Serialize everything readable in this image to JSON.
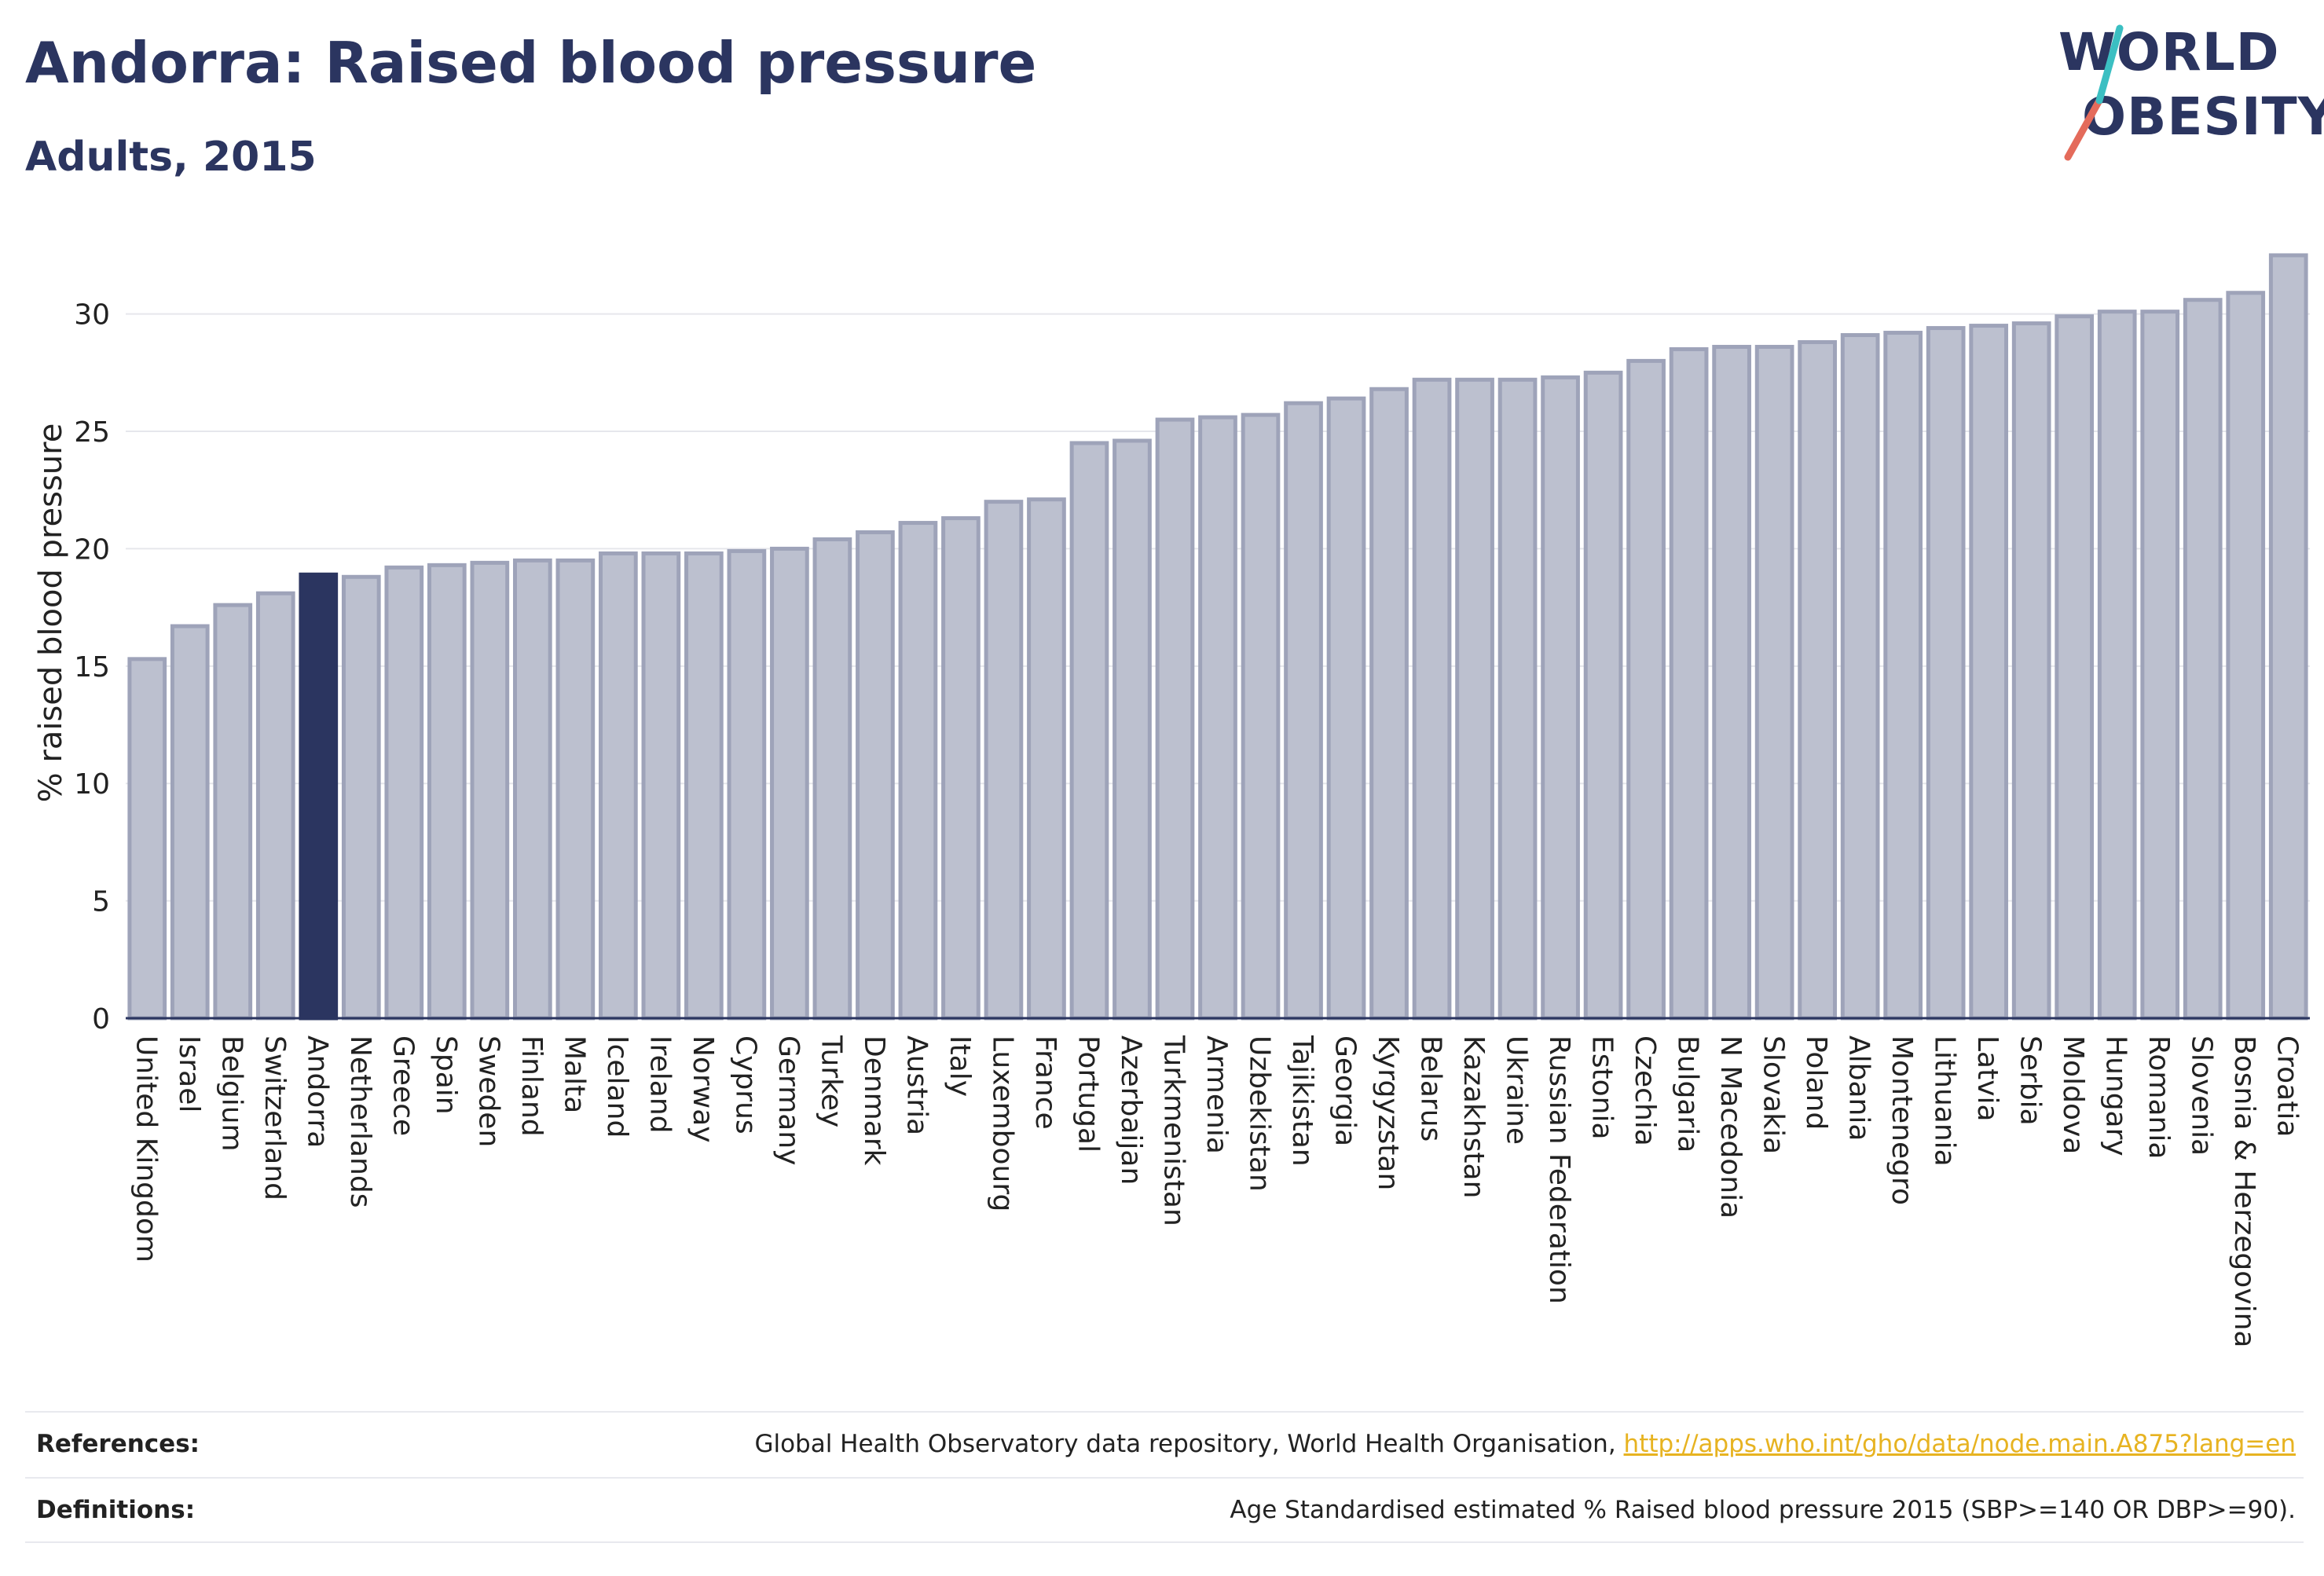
{
  "header": {
    "title": "Andorra: Raised blood pressure",
    "subtitle": "Adults, 2015"
  },
  "logo": {
    "line1": "WORLD",
    "line2": "OBESITY",
    "accent_colors": [
      "#e46b5b",
      "#3bbfc2"
    ]
  },
  "colors": {
    "highlight": "#2b3560",
    "bar_fill": "#bcc0cf",
    "bar_stroke": "#9ea3b9",
    "text": "#2b3560",
    "link": "#e7b321"
  },
  "chart_data": {
    "type": "bar",
    "title": "Andorra: Raised blood pressure",
    "subtitle": "Adults, 2015",
    "xlabel": "",
    "ylabel": "% raised blood pressure",
    "ylim": [
      0,
      33
    ],
    "yticks": [
      0,
      5,
      10,
      15,
      20,
      25,
      30
    ],
    "grid": true,
    "highlight": "Andorra",
    "categories": [
      "United Kingdom",
      "Israel",
      "Belgium",
      "Switzerland",
      "Andorra",
      "Netherlands",
      "Greece",
      "Spain",
      "Sweden",
      "Finland",
      "Malta",
      "Iceland",
      "Ireland",
      "Norway",
      "Cyprus",
      "Germany",
      "Turkey",
      "Denmark",
      "Austria",
      "Italy",
      "Luxembourg",
      "France",
      "Portugal",
      "Azerbaijan",
      "Turkmenistan",
      "Armenia",
      "Uzbekistan",
      "Tajikistan",
      "Georgia",
      "Kyrgyzstan",
      "Belarus",
      "Kazakhstan",
      "Ukraine",
      "Russian Federation",
      "Estonia",
      "Czechia",
      "Bulgaria",
      "N Macedonia",
      "Slovakia",
      "Poland",
      "Albania",
      "Montenegro",
      "Lithuania",
      "Latvia",
      "Serbia",
      "Moldova",
      "Hungary",
      "Romania",
      "Slovenia",
      "Bosnia & Herzegovina",
      "Croatia"
    ],
    "values": [
      15.3,
      16.7,
      17.6,
      18.1,
      18.9,
      18.8,
      19.2,
      19.3,
      19.4,
      19.5,
      19.5,
      19.8,
      19.8,
      19.8,
      19.9,
      20.0,
      20.4,
      20.7,
      21.1,
      21.3,
      22.0,
      22.1,
      24.5,
      24.6,
      25.5,
      25.6,
      25.7,
      26.2,
      26.4,
      26.8,
      27.2,
      27.2,
      27.2,
      27.3,
      27.5,
      28.0,
      28.5,
      28.6,
      28.6,
      28.8,
      29.1,
      29.2,
      29.4,
      29.5,
      29.6,
      29.9,
      30.1,
      30.1,
      30.6,
      30.9,
      32.5
    ]
  },
  "footer": {
    "references_label": "References:",
    "references_text": "Global Health Observatory data repository, World Health Organisation, ",
    "references_link": "http://apps.who.int/gho/data/node.main.A875?lang=en",
    "definitions_label": "Definitions:",
    "definitions_text": "Age Standardised estimated % Raised blood pressure 2015 (SBP>=140 OR DBP>=90)."
  }
}
